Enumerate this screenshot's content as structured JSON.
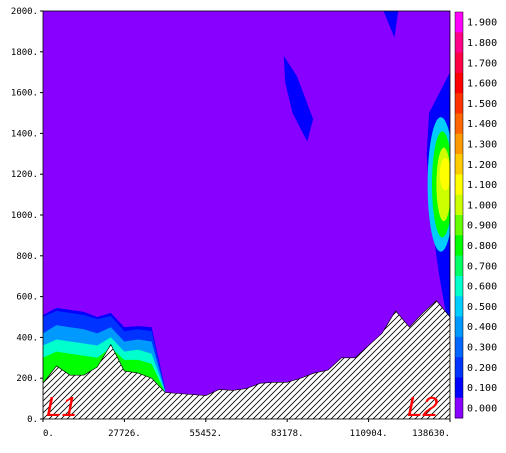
{
  "chart_data": {
    "type": "heatmap",
    "title": "",
    "xlabel": "",
    "ylabel": "",
    "x_ticks": [
      "0.",
      "27726.",
      "55452.",
      "83178.",
      "110904.",
      "138630."
    ],
    "y_ticks": [
      "0.",
      "200.",
      "400.",
      "600.",
      "800.",
      "1000.",
      "1200.",
      "1400.",
      "1600.",
      "1800.",
      "2000."
    ],
    "xlim": [
      0,
      138630
    ],
    "ylim": [
      0,
      2000
    ],
    "background_value": 0.05,
    "colorbar": {
      "labels": [
        "1.900",
        "1.800",
        "1.700",
        "1.600",
        "1.500",
        "1.400",
        "1.300",
        "1.200",
        "1.100",
        "1.000",
        "0.900",
        "0.800",
        "0.700",
        "0.600",
        "0.500",
        "0.400",
        "0.300",
        "0.200",
        "0.100",
        "0.000"
      ],
      "colors": [
        "#ff00ff",
        "#ff0088",
        "#ff0044",
        "#ff0000",
        "#ff3300",
        "#ff6600",
        "#ff9900",
        "#ffcc00",
        "#ffff00",
        "#ccff00",
        "#66ff00",
        "#00ff00",
        "#00ff66",
        "#00ffcc",
        "#00ccff",
        "#0099ff",
        "#0066ff",
        "#0033ff",
        "#0000ff",
        "#8800ff"
      ]
    },
    "terrain": {
      "x": [
        0,
        4600,
        9200,
        13900,
        18500,
        23100,
        27700,
        32400,
        37000,
        41600,
        46200,
        50900,
        55500,
        60100,
        64700,
        69400,
        74000,
        78600,
        83200,
        87800,
        92400,
        97100,
        101700,
        106300,
        110900,
        115500,
        120100,
        124800,
        129400,
        134000,
        138630
      ],
      "y": [
        175,
        260,
        215,
        215,
        255,
        365,
        235,
        225,
        200,
        130,
        125,
        120,
        115,
        145,
        140,
        150,
        175,
        180,
        180,
        200,
        225,
        240,
        300,
        300,
        360,
        420,
        530,
        450,
        520,
        580,
        500
      ]
    },
    "left_boundary": {
      "x": [
        0,
        4600,
        9200,
        13900,
        18500,
        23100,
        27700,
        32400,
        37000,
        41600
      ],
      "upper_y": [
        510,
        545,
        535,
        525,
        500,
        520,
        450,
        455,
        450,
        150
      ],
      "levels_y": [
        [
          500,
          530,
          520,
          510,
          490,
          505,
          430,
          440,
          430,
          145
        ],
        [
          420,
          460,
          450,
          440,
          420,
          450,
          380,
          390,
          380,
          140
        ],
        [
          360,
          390,
          380,
          370,
          360,
          400,
          330,
          340,
          320,
          135
        ],
        [
          300,
          330,
          320,
          310,
          300,
          350,
          290,
          290,
          270,
          130
        ]
      ]
    },
    "right_boundary": {
      "y": [
        500,
        700,
        900,
        1100,
        1300,
        1500,
        1700
      ],
      "inner_x": [
        137500,
        135000,
        133000,
        131500,
        130700,
        131500,
        138630
      ],
      "blobs": [
        {
          "value": 1.2,
          "center": [
            137000,
            1200
          ],
          "radius": [
            1800,
            80
          ]
        },
        {
          "value": 1.0,
          "center": [
            136500,
            1150
          ],
          "radius": [
            2500,
            180
          ]
        },
        {
          "value": 0.8,
          "center": [
            136000,
            1150
          ],
          "radius": [
            3500,
            260
          ]
        },
        {
          "value": 0.5,
          "center": [
            135500,
            1150
          ],
          "radius": [
            4500,
            330
          ]
        }
      ]
    },
    "annotations": [
      "L1",
      "L2"
    ],
    "dark_pockets": [
      {
        "value": 0.1,
        "points": [
          [
            82000,
            1780
          ],
          [
            86500,
            1680
          ],
          [
            92000,
            1470
          ],
          [
            90000,
            1360
          ],
          [
            85000,
            1500
          ],
          [
            82500,
            1650
          ]
        ]
      },
      {
        "value": 0.1,
        "points": [
          [
            116000,
            2000
          ],
          [
            121000,
            2000
          ],
          [
            119700,
            1870
          ]
        ]
      }
    ]
  }
}
